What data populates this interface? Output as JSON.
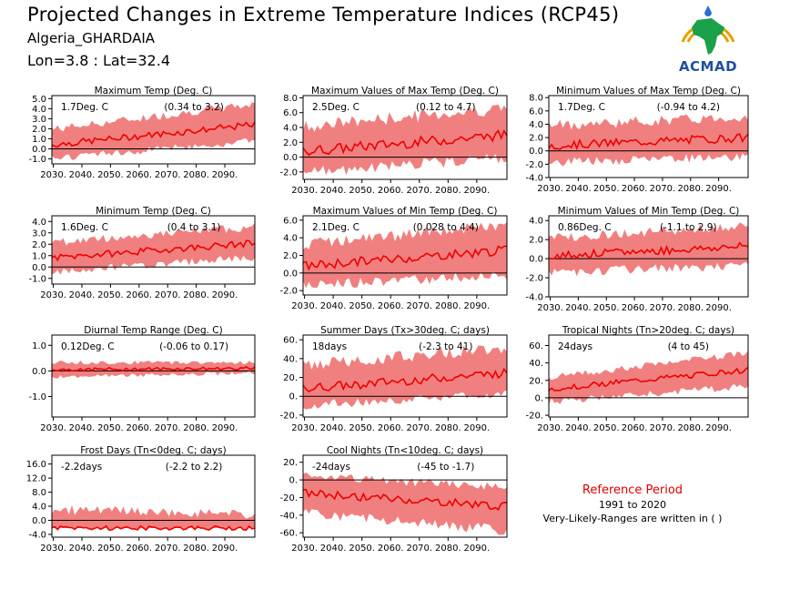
{
  "header": {
    "title": "Projected Changes in Extreme Temperature Indices (RCP45)",
    "region": "Algeria_GHARDAIA",
    "coords": "Lon=3.8 : Lat=32.4",
    "logo_text": "ACMAD"
  },
  "reference": {
    "title": "Reference Period",
    "years": "1991 to 2020",
    "note": "Very-Likely-Ranges are written in ( )"
  },
  "colors": {
    "band": "#f08080",
    "line": "#ee0000",
    "zero": "#000000"
  },
  "chart_data": [
    {
      "type": "area",
      "title": "Maximum Temp (Deg. C)",
      "change": "1.7Deg. C",
      "range": "(0.34 to 3.2)",
      "x_ticks": [
        "2030.",
        "2040.",
        "2050.",
        "2060.",
        "2070.",
        "2080.",
        "2090."
      ],
      "y_ticks": [
        "5.0",
        "4.0",
        "3.0",
        "2.0",
        "1.0",
        "0.0",
        "-1.0"
      ],
      "ylim": [
        -1.5,
        5.3
      ],
      "series": [
        {
          "start": 0.4,
          "end": 2.4,
          "low_start": -0.8,
          "low_end": 0.9,
          "high_start": 1.8,
          "high_end": 4.3
        }
      ]
    },
    {
      "type": "area",
      "title": "Maximum Values of Max Temp (Deg. C)",
      "change": "2.5Deg. C",
      "range": "(0.12 to 4.7)",
      "x_ticks": [
        "2030.",
        "2040.",
        "2050.",
        "2060.",
        "2070.",
        "2080.",
        "2090."
      ],
      "y_ticks": [
        "8.0",
        "6.0",
        "4.0",
        "2.0",
        "0.0",
        "-2.0"
      ],
      "ylim": [
        -3.0,
        8.3
      ],
      "series": [
        {
          "start": 0.8,
          "end": 3.0,
          "low_start": -1.8,
          "low_end": 0.2,
          "high_start": 3.8,
          "high_end": 6.3
        }
      ]
    },
    {
      "type": "area",
      "title": "Minimum Values of Max Temp (Deg. C)",
      "change": "1.7Deg. C",
      "range": "(-0.94 to 4.2)",
      "x_ticks": [
        "2030.",
        "2040.",
        "2050.",
        "2060.",
        "2070.",
        "2080.",
        "2090."
      ],
      "y_ticks": [
        "8.0",
        "6.0",
        "4.0",
        "2.0",
        "0.0",
        "-2.0",
        "-4.0"
      ],
      "ylim": [
        -4.0,
        8.3
      ],
      "series": [
        {
          "start": 0.8,
          "end": 2.0,
          "low_start": -1.5,
          "low_end": -0.6,
          "high_start": 3.5,
          "high_end": 4.8
        }
      ]
    },
    {
      "type": "area",
      "title": "Minimum Temp (Deg. C)",
      "change": "1.6Deg. C",
      "range": "(0.4 to 3.1)",
      "x_ticks": [
        "2030.",
        "2040.",
        "2050.",
        "2060.",
        "2070.",
        "2080.",
        "2090."
      ],
      "y_ticks": [
        "4.0",
        "3.0",
        "2.0",
        "1.0",
        "0.0",
        "-1.0"
      ],
      "ylim": [
        -1.5,
        4.5
      ],
      "series": [
        {
          "start": 0.8,
          "end": 2.1,
          "low_start": -0.3,
          "low_end": 1.0,
          "high_start": 2.0,
          "high_end": 3.4
        }
      ]
    },
    {
      "type": "area",
      "title": "Maximum Values of Min Temp (Deg. C)",
      "change": "2.1Deg. C",
      "range": "(0.028 to 4.4)",
      "x_ticks": [
        "2030.",
        "2040.",
        "2050.",
        "2060.",
        "2070.",
        "2080.",
        "2090."
      ],
      "y_ticks": [
        "6.0",
        "4.0",
        "2.0",
        "0.0",
        "-2.0"
      ],
      "ylim": [
        -2.5,
        6.5
      ],
      "series": [
        {
          "start": 0.8,
          "end": 2.6,
          "low_start": -1.2,
          "low_end": 0.0,
          "high_start": 3.0,
          "high_end": 5.2
        }
      ]
    },
    {
      "type": "area",
      "title": "Minimum Values of Min Temp (Deg. C)",
      "change": "0.86Deg. C",
      "range": "(-1.1 to 2.9)",
      "x_ticks": [
        "2030.",
        "2040.",
        "2050.",
        "2060.",
        "2070.",
        "2080.",
        "2090."
      ],
      "y_ticks": [
        "4.0",
        "2.0",
        "0.0",
        "-2.0",
        "-4.0"
      ],
      "ylim": [
        -4.0,
        4.5
      ],
      "series": [
        {
          "start": 0.3,
          "end": 1.3,
          "low_start": -1.3,
          "low_end": -0.5,
          "high_start": 2.0,
          "high_end": 3.2
        }
      ]
    },
    {
      "type": "area",
      "title": "Diurnal Temp Range (Deg. C)",
      "change": "0.12Deg. C",
      "range": "(-0.06 to 0.17)",
      "x_ticks": [
        "2030.",
        "2040.",
        "2050.",
        "2060.",
        "2070.",
        "2080.",
        "2090."
      ],
      "y_ticks": [
        "1.0",
        "0.0",
        "-1.0"
      ],
      "ylim": [
        -1.8,
        1.4
      ],
      "series": [
        {
          "start": 0.05,
          "end": 0.1,
          "low_start": -0.2,
          "low_end": -0.05,
          "high_start": 0.3,
          "high_end": 0.3
        }
      ]
    },
    {
      "type": "area",
      "title": "Summer Days (Tx>30deg. C; days)",
      "change": "18days",
      "range": "(-2.3 to 41)",
      "x_ticks": [
        "2030.",
        "2040.",
        "2050.",
        "2060.",
        "2070.",
        "2080.",
        "2090."
      ],
      "y_ticks": [
        "60.",
        "40.",
        "20.",
        "0.",
        "-20."
      ],
      "ylim": [
        -22,
        65
      ],
      "series": [
        {
          "start": 8,
          "end": 25,
          "low_start": -8,
          "low_end": 5,
          "high_start": 30,
          "high_end": 50
        }
      ]
    },
    {
      "type": "area",
      "title": "Tropical Nights (Tn>20deg. C; days)",
      "change": "24days",
      "range": "(4 to 45)",
      "x_ticks": [
        "2030.",
        "2040.",
        "2050.",
        "2060.",
        "2070.",
        "2080.",
        "2090."
      ],
      "y_ticks": [
        "60.",
        "40.",
        "20.",
        "0.",
        "-20."
      ],
      "ylim": [
        -22,
        72
      ],
      "series": [
        {
          "start": 10,
          "end": 32,
          "low_start": -3,
          "low_end": 15,
          "high_start": 22,
          "high_end": 50
        }
      ]
    },
    {
      "type": "area",
      "title": "Frost Days (Tn<0deg. C; days)",
      "change": "-2.2days",
      "range": "(-2.2 to 2.2)",
      "x_ticks": [
        "2030.",
        "2040.",
        "2050.",
        "2060.",
        "2070.",
        "2080.",
        "2090."
      ],
      "y_ticks": [
        "16.0",
        "12.0",
        "8.0",
        "4.0",
        "0.0",
        "-4.0"
      ],
      "ylim": [
        -4.8,
        18.5
      ],
      "series": [
        {
          "start": -2.2,
          "end": -2.2,
          "low_start": -2.2,
          "low_end": -2.2,
          "high_start": 2.5,
          "high_end": 1.0
        }
      ]
    },
    {
      "type": "area",
      "title": "Cool Nights (Tn<10deg. C; days)",
      "change": "-24days",
      "range": "(-45 to -1.7)",
      "x_ticks": [
        "2030.",
        "2040.",
        "2050.",
        "2060.",
        "2070.",
        "2080.",
        "2090."
      ],
      "y_ticks": [
        "20.",
        "0.",
        "-20.",
        "-40.",
        "-60."
      ],
      "ylim": [
        -65,
        28
      ],
      "series": [
        {
          "start": -15,
          "end": -30,
          "low_start": -35,
          "low_end": -55,
          "high_start": 2,
          "high_end": -10
        }
      ]
    }
  ]
}
